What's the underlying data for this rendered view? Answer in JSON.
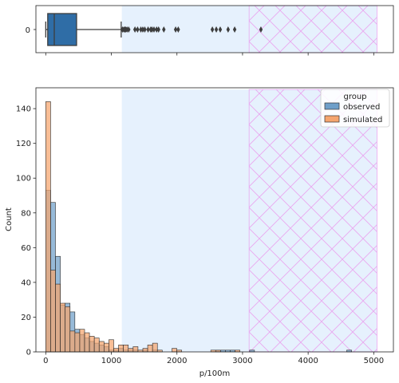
{
  "chart_data": [
    {
      "type": "box",
      "panel": "top",
      "ytick": "0",
      "xlim": [
        -150,
        5300
      ],
      "box": {
        "q1": 30,
        "median": 130,
        "q3": 470,
        "whisker_low": 0,
        "whisker_high": 1150
      },
      "outliers": [
        1170,
        1190,
        1205,
        1220,
        1240,
        1265,
        1360,
        1400,
        1450,
        1480,
        1510,
        1560,
        1600,
        1620,
        1650,
        1690,
        1720,
        1800,
        1980,
        2020,
        2540,
        2600,
        2660,
        2780,
        2880,
        3280
      ],
      "box_color": "#2f6da6",
      "span_light": [
        1160,
        5050
      ],
      "span_hatched": [
        3100,
        5050
      ]
    },
    {
      "type": "histogram",
      "panel": "bottom",
      "xlabel": "p/100m",
      "ylabel": "Count",
      "xlim": [
        -150,
        5300
      ],
      "ylim": [
        0,
        152
      ],
      "xticks": [
        0,
        1000,
        2000,
        3000,
        4000,
        5000
      ],
      "yticks": [
        0,
        20,
        40,
        60,
        80,
        100,
        120,
        140
      ],
      "bin_width": 74,
      "legend": {
        "title": "group",
        "position": "top-right",
        "entries": [
          "observed",
          "simulated"
        ]
      },
      "span_light": [
        1160,
        5050
      ],
      "span_hatched": [
        3100,
        5050
      ],
      "series": [
        {
          "name": "observed",
          "color": "#6f9fc9",
          "values": [
            93,
            86,
            55,
            27,
            28,
            23,
            13,
            10,
            8,
            6,
            5,
            4,
            3,
            1,
            1,
            2,
            1,
            1,
            1,
            0,
            1,
            0,
            1,
            0,
            0,
            0,
            0,
            0,
            0,
            0,
            0,
            0,
            0,
            0,
            0,
            1,
            1,
            1,
            1,
            0,
            0,
            0,
            1,
            0,
            0,
            0,
            0,
            0,
            0,
            0,
            0,
            0,
            0,
            0,
            0,
            0,
            0,
            0,
            0,
            0,
            0,
            0,
            1,
            0,
            0,
            0,
            0
          ]
        },
        {
          "name": "simulated",
          "color": "#f5a56e",
          "values": [
            144,
            47,
            39,
            28,
            26,
            12,
            11,
            13,
            11,
            9,
            8,
            6,
            5,
            7,
            2,
            4,
            4,
            2,
            3,
            1,
            2,
            4,
            5,
            1,
            0,
            0,
            2,
            1,
            0,
            0,
            0,
            0,
            0,
            0,
            1,
            1,
            0,
            0,
            0,
            1,
            0,
            0,
            0,
            0,
            0,
            0,
            0,
            0,
            0,
            0,
            0,
            0,
            0,
            0,
            0,
            0,
            0,
            0,
            0,
            0,
            0,
            0,
            0,
            0,
            0,
            0,
            0
          ]
        }
      ]
    }
  ]
}
